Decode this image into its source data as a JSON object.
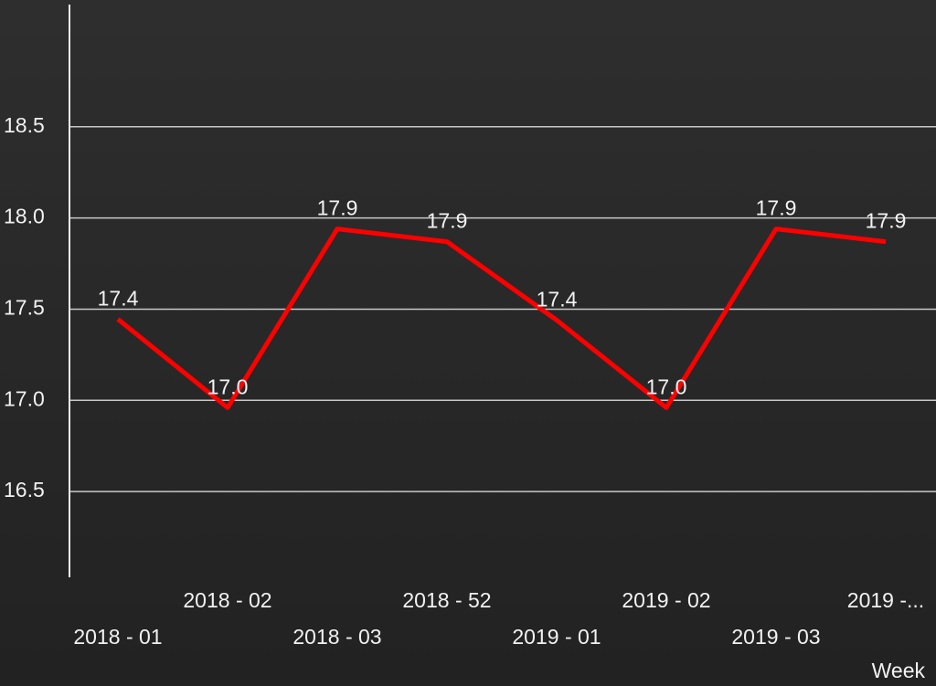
{
  "chart_data": {
    "type": "line",
    "x_label": "Week",
    "categories": [
      "2018 - 01",
      "2018 - 02",
      "2018 - 03",
      "2018 - 52",
      "2019 - 01",
      "2019 - 02",
      "2019 - 03",
      "2019 -..."
    ],
    "series": [
      {
        "color": "#ff0000",
        "values": [
          17.445,
          16.96,
          17.94,
          17.87,
          17.44,
          16.96,
          17.94,
          17.87
        ],
        "value_labels": [
          "17.4",
          "17.0",
          "17.9",
          "17.9",
          "17.4",
          "17.0",
          "17.9",
          "17.9"
        ]
      }
    ],
    "ylim": [
      16.03,
      19.17
    ],
    "yticks": [
      {
        "value": 16.5,
        "label": "16.5"
      },
      {
        "value": 17,
        "label": "17.0"
      },
      {
        "value": 17.5,
        "label": "17.5"
      },
      {
        "value": 18,
        "label": "18.0"
      },
      {
        "value": 18.5,
        "label": "18.5"
      }
    ],
    "grid": true
  }
}
